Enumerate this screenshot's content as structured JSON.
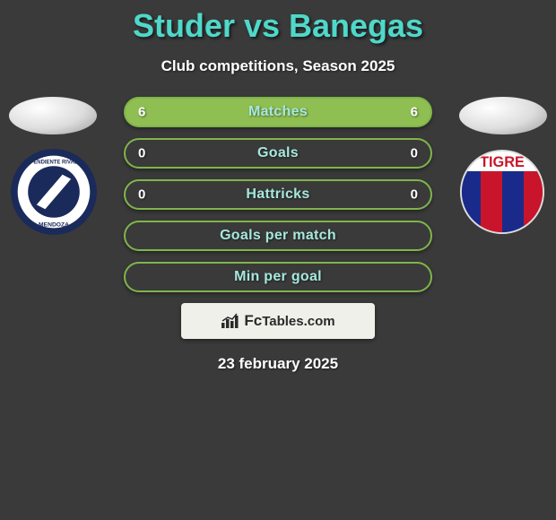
{
  "title": "Studer vs Banegas",
  "title_color": "#4fd8c9",
  "subtitle": "Club competitions, Season 2025",
  "background_color": "#3a3a3a",
  "stat_row": {
    "height": 34,
    "border_radius": 17,
    "gap": 12,
    "label_color": "#a6e8dd",
    "value_color": "#ffffff",
    "font_size": 16
  },
  "rows": [
    {
      "label": "Matches",
      "left": "6",
      "right": "6",
      "border": "#7fb54a",
      "fill": "#8fbf53"
    },
    {
      "label": "Goals",
      "left": "0",
      "right": "0",
      "border": "#7fb54a",
      "fill": "transparent"
    },
    {
      "label": "Hattricks",
      "left": "0",
      "right": "0",
      "border": "#7fb54a",
      "fill": "transparent"
    },
    {
      "label": "Goals per match",
      "left": "",
      "right": "",
      "border": "#7fb54a",
      "fill": "transparent"
    },
    {
      "label": "Min per goal",
      "left": "",
      "right": "",
      "border": "#7fb54a",
      "fill": "transparent"
    }
  ],
  "badge_left": {
    "outer_bg": "#ffffff",
    "ring": "#1a2a5a",
    "inner": "#1a2a5a",
    "sash": "#ffffff",
    "text_top": "INDEPENDIENTE RIVADAVIA",
    "text_bottom": "MENDOZA",
    "text_color": "#1a2a5a"
  },
  "badge_right": {
    "text": "TIGRE",
    "text_bg": "#ffffff",
    "text_color": "#c8152b",
    "stripe_blue": "#1a2a8a",
    "stripe_red": "#c8152b"
  },
  "footer": {
    "brand_prefix": "Fc",
    "brand_suffix": "Tables.com",
    "box_bg": "#f0f0ea",
    "box_text": "#2a2a2a",
    "chart_color": "#2a2a2a"
  },
  "date_text": "23 february 2025"
}
